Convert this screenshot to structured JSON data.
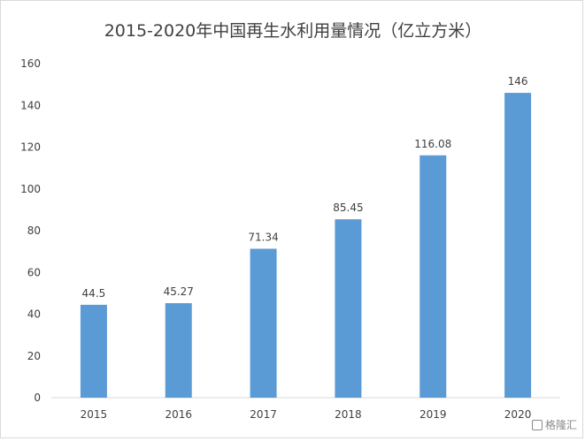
{
  "chart_data": {
    "type": "bar",
    "title": "2015-2020年中国再生水利用量情况（亿立方米）",
    "categories": [
      "2015",
      "2016",
      "2017",
      "2018",
      "2019",
      "2020"
    ],
    "values": [
      44.5,
      45.27,
      71.34,
      85.45,
      116.08,
      146
    ],
    "value_labels": [
      "44.5",
      "45.27",
      "71.34",
      "85.45",
      "116.08",
      "146"
    ],
    "xlabel": "",
    "ylabel": "",
    "ylim": [
      0,
      160
    ],
    "yticks": [
      "0",
      "20",
      "40",
      "60",
      "80",
      "100",
      "120",
      "140",
      "160"
    ],
    "grid": false,
    "legend": "none",
    "bar_color": "#5b9bd5"
  },
  "watermark": {
    "text": "格隆汇"
  }
}
